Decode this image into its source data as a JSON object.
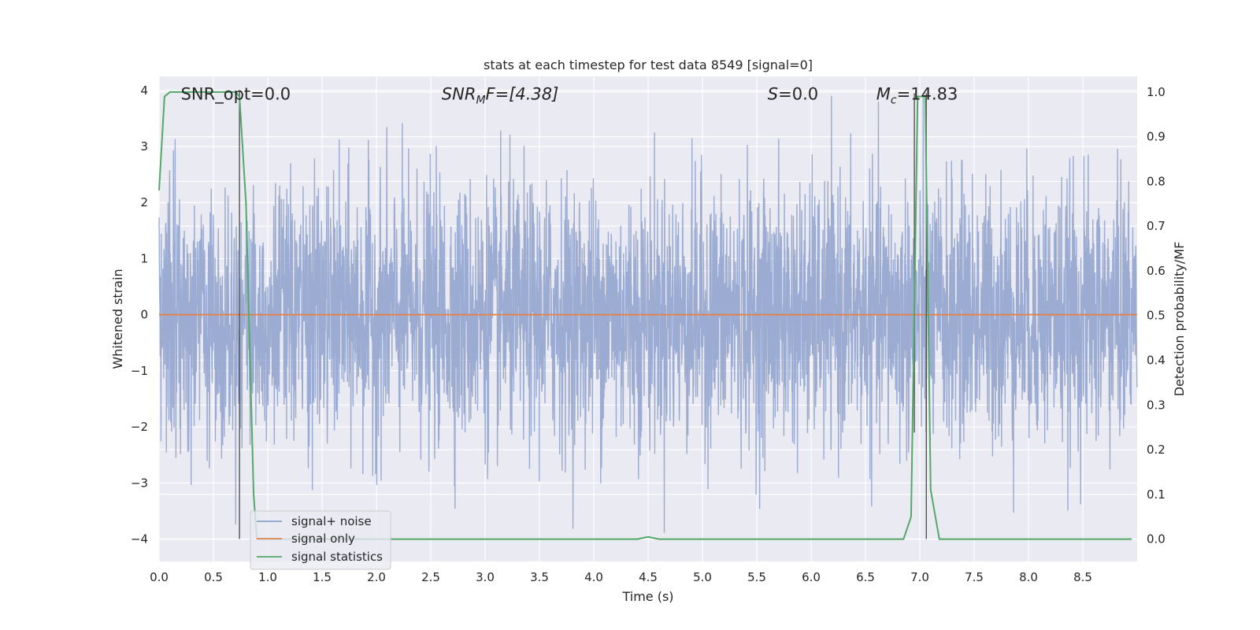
{
  "chart_data": {
    "type": "line",
    "title": "stats at each timestep for test data 8549 [signal=0]",
    "xlabel": "Time (s)",
    "ylabel_left": "Whitened strain",
    "ylabel_right": "Detection probability/MF",
    "xlim": [
      0.0,
      9.0
    ],
    "ylim_left": [
      -4.4,
      4.25
    ],
    "ylim_right": [
      -0.05,
      1.035
    ],
    "x_ticks": [
      "0.0",
      "0.5",
      "1.0",
      "1.5",
      "2.0",
      "2.5",
      "3.0",
      "3.5",
      "4.0",
      "4.5",
      "5.0",
      "5.5",
      "6.0",
      "6.5",
      "7.0",
      "7.5",
      "8.0",
      "8.5"
    ],
    "y_ticks_left": [
      "−4",
      "−3",
      "−2",
      "−1",
      "0",
      "1",
      "2",
      "3",
      "4"
    ],
    "y_ticks_right": [
      "0.0",
      "0.1",
      "0.2",
      "0.3",
      "0.4",
      "0.5",
      "0.6",
      "0.7",
      "0.8",
      "0.9",
      "1.0"
    ],
    "grid": true,
    "legend_position": "lower-left",
    "series": [
      {
        "name": "signal+ noise",
        "axis": "left",
        "color": "#8da0cb",
        "description_stats": {
          "mean": 0.0,
          "std": 1.0,
          "min": -4.0,
          "max": 3.9
        }
      },
      {
        "name": "signal only",
        "axis": "left",
        "color": "#dd8452",
        "x": [
          0.0,
          9.0
        ],
        "y": [
          0.0,
          0.0
        ]
      },
      {
        "name": "signal statistics",
        "axis": "right",
        "color": "#55a868",
        "x": [
          0.0,
          0.05,
          0.1,
          0.7,
          0.74,
          0.8,
          0.87,
          0.9,
          4.4,
          4.5,
          4.6,
          6.85,
          6.92,
          6.98,
          7.0,
          7.05,
          7.1,
          7.18,
          8.95
        ],
        "y": [
          0.78,
          0.99,
          1.0,
          1.0,
          0.99,
          0.75,
          0.1,
          0.0,
          0.0,
          0.005,
          0.0,
          0.0,
          0.05,
          0.99,
          0.99,
          0.99,
          0.11,
          0.0,
          0.0
        ]
      }
    ],
    "vertical_markers": [
      {
        "x": 0.74,
        "from": -4.0,
        "to": 4.0
      },
      {
        "x": 6.95,
        "from": -2.1,
        "to": 3.95
      },
      {
        "x": 7.06,
        "from": -4.0,
        "to": 3.95
      }
    ],
    "annotations": [
      {
        "id": "snr-opt",
        "text": "SNR_opt=0.0",
        "x": 0.2,
        "y": 3.95
      },
      {
        "id": "snr-mf",
        "prefix": "SNR",
        "sub": "M",
        "suffix": "F=[4.38]",
        "x": 2.6,
        "y": 3.95
      },
      {
        "id": "s-val",
        "prefix": "S",
        "suffix": "=0.0",
        "x": 5.6,
        "y": 3.95
      },
      {
        "id": "mc-val",
        "prefix": "M",
        "sub": "c",
        "suffix": "=14.83",
        "x": 6.6,
        "y": 3.95
      }
    ]
  }
}
